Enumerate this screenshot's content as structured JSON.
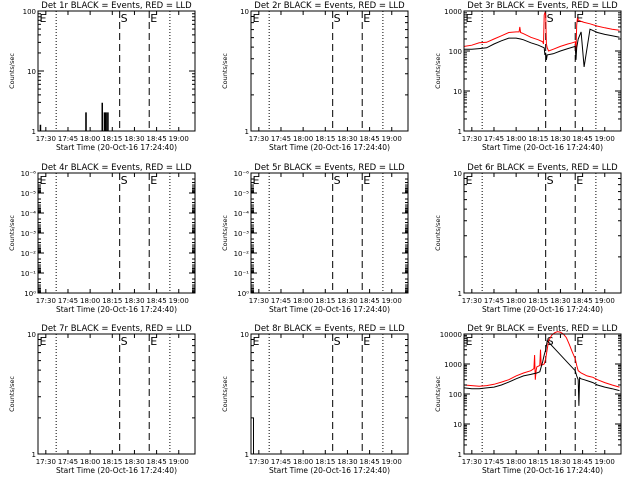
{
  "colors": {
    "events": "#000000",
    "lld": "#ff0000",
    "background": "#ffffff",
    "axes": "#000000"
  },
  "common": {
    "xlabel": "Start Time (20-Oct-16 17:24:40)",
    "ylabel": "Counts/sec",
    "xticks": [
      "17:30",
      "17:45",
      "18:00",
      "18:15",
      "18:30",
      "18:45",
      "19:00"
    ],
    "xtick_minutes": [
      30,
      45,
      60,
      75,
      90,
      105,
      120
    ],
    "xrange_minutes": [
      24.7,
      131
    ],
    "markers": [
      {
        "label": "E",
        "minute": 25,
        "style": "solid"
      },
      {
        "label": "S",
        "minute": 80,
        "style": "dashed"
      },
      {
        "label": "E",
        "minute": 100,
        "style": "dashed"
      }
    ],
    "dotted_minutes": [
      37,
      114
    ]
  },
  "chart_data": [
    {
      "id": "1r",
      "type": "line",
      "title": "Det 1r BLACK = Events, RED = LLD",
      "yscale": "log",
      "ylim": [
        1,
        100
      ],
      "yticks": [
        "1",
        "10",
        "100"
      ],
      "ytick_values": [
        1,
        10,
        100
      ],
      "series": [
        {
          "color": "#000000",
          "x": [
            26.2,
            26.2,
            26.5,
            26.5,
            57,
            57,
            57.4,
            57.4,
            68,
            68,
            68.4,
            68.4,
            69.5,
            69.5,
            69.9,
            69.9,
            70.6,
            70.6,
            71.0,
            71.0,
            71.8,
            71.8,
            72.2,
            72.2
          ],
          "y": [
            1,
            1.25,
            1.25,
            1,
            1,
            2,
            2,
            1,
            1,
            2.9,
            2.9,
            1,
            1,
            2,
            2,
            1,
            1,
            2,
            2,
            1,
            1,
            2,
            2,
            1
          ]
        }
      ]
    },
    {
      "id": "2r",
      "type": "line",
      "title": "Det 2r BLACK = Events, RED = LLD",
      "yscale": "log",
      "ylim": [
        1,
        10
      ],
      "yticks": [
        "1",
        "10"
      ],
      "ytick_values": [
        1,
        10
      ],
      "series": []
    },
    {
      "id": "3r",
      "type": "line",
      "title": "Det 3r BLACK = Events, RED = LLD",
      "yscale": "log",
      "ylim": [
        1,
        1000
      ],
      "yticks": [
        "1",
        "10",
        "100",
        "1000"
      ],
      "ytick_values": [
        1,
        10,
        100,
        1000
      ],
      "series": [
        {
          "color": "#ff0000",
          "x": [
            25,
            30,
            35,
            40,
            45,
            50,
            55,
            60,
            62,
            62.5,
            63,
            65,
            70,
            75,
            78,
            78.5,
            79,
            79.5,
            80,
            80.5,
            81,
            82,
            85,
            90,
            95,
            98,
            100,
            100.5,
            101,
            101.5,
            102,
            104,
            106,
            110,
            115,
            120,
            125,
            130
          ],
          "y": [
            130,
            140,
            160,
            165,
            200,
            240,
            290,
            300,
            300,
            400,
            290,
            270,
            220,
            190,
            170,
            150,
            800,
            900,
            800,
            150,
            120,
            100,
            110,
            130,
            150,
            160,
            170,
            100,
            450,
            650,
            600,
            550,
            520,
            480,
            420,
            380,
            350,
            330
          ]
        },
        {
          "color": "#000000",
          "x": [
            25,
            30,
            35,
            40,
            45,
            50,
            55,
            60,
            63,
            65,
            70,
            75,
            79,
            79.5,
            80,
            80.5,
            81,
            85,
            90,
            95,
            100,
            100.5,
            101,
            102,
            104,
            106,
            110,
            115,
            120,
            125,
            130
          ],
          "y": [
            110,
            110,
            115,
            120,
            150,
            180,
            210,
            210,
            200,
            190,
            160,
            140,
            120,
            80,
            90,
            60,
            80,
            85,
            100,
            115,
            130,
            60,
            120,
            200,
            300,
            40,
            350,
            290,
            260,
            240,
            220
          ]
        }
      ]
    },
    {
      "id": "4r",
      "type": "line",
      "title": "Det 4r BLACK = Events, RED = LLD",
      "yscale": "log",
      "ylim": [
        1e-06,
        1.0
      ],
      "yticks": [
        "10⁻⁶",
        "10⁻⁵",
        "10⁻⁴",
        "10⁻³",
        "10⁻²",
        "10⁻¹",
        "10⁰"
      ],
      "ytick_values": [
        1e-06,
        1e-05,
        0.0001,
        0.001,
        0.01,
        0.1,
        1
      ],
      "invert_y": true,
      "series": []
    },
    {
      "id": "5r",
      "type": "line",
      "title": "Det 5r BLACK = Events, RED = LLD",
      "yscale": "log",
      "ylim": [
        1e-06,
        1.0
      ],
      "yticks": [
        "10⁻⁶",
        "10⁻⁵",
        "10⁻⁴",
        "10⁻³",
        "10⁻²",
        "10⁻¹",
        "10⁰"
      ],
      "ytick_values": [
        1e-06,
        1e-05,
        0.0001,
        0.001,
        0.01,
        0.1,
        1
      ],
      "invert_y": true,
      "series": []
    },
    {
      "id": "6r",
      "type": "line",
      "title": "Det 6r BLACK = Events, RED = LLD",
      "yscale": "log",
      "ylim": [
        1,
        10
      ],
      "yticks": [
        "1",
        "10"
      ],
      "ytick_values": [
        1,
        10
      ],
      "series": []
    },
    {
      "id": "7r",
      "type": "line",
      "title": "Det 7r BLACK = Events, RED = LLD",
      "yscale": "log",
      "ylim": [
        1,
        10
      ],
      "yticks": [
        "1",
        "10"
      ],
      "ytick_values": [
        1,
        10
      ],
      "series": []
    },
    {
      "id": "8r",
      "type": "line",
      "title": "Det 8r BLACK = Events, RED = LLD",
      "yscale": "log",
      "ylim": [
        1,
        10
      ],
      "yticks": [
        "1",
        "10"
      ],
      "ytick_values": [
        1,
        10
      ],
      "series": [
        {
          "color": "#000000",
          "x": [
            26.4,
            26.4
          ],
          "y": [
            1,
            2
          ]
        }
      ]
    },
    {
      "id": "9r",
      "type": "line",
      "title": "Det 9r BLACK = Events, RED = LLD",
      "yscale": "log",
      "ylim": [
        1,
        10000
      ],
      "yticks": [
        "1",
        "10",
        "100",
        "1000",
        "10000"
      ],
      "ytick_values": [
        1,
        10,
        100,
        1000,
        10000
      ],
      "series": [
        {
          "color": "#ff0000",
          "x": [
            25,
            30,
            35,
            40,
            45,
            50,
            55,
            60,
            65,
            70,
            72,
            72.5,
            73,
            73.5,
            74,
            76,
            76.5,
            77,
            79,
            80,
            82,
            84,
            86,
            88,
            90,
            92,
            94,
            96,
            98,
            100,
            101,
            102,
            104,
            106,
            108,
            110,
            112,
            115,
            120,
            125,
            130
          ],
          "y": [
            200,
            190,
            180,
            190,
            210,
            250,
            300,
            400,
            500,
            600,
            700,
            2000,
            300,
            600,
            800,
            900,
            3000,
            900,
            1000,
            1500,
            6000,
            9000,
            11000,
            12000,
            11500,
            10000,
            7500,
            4500,
            2500,
            1500,
            900,
            600,
            500,
            450,
            400,
            380,
            360,
            300,
            240,
            200,
            170
          ]
        },
        {
          "color": "#000000",
          "x": [
            25,
            30,
            35,
            40,
            45,
            50,
            55,
            60,
            65,
            70,
            72,
            74,
            76,
            77,
            78,
            79,
            80,
            80.5,
            81,
            100,
            101,
            102,
            102.5,
            103,
            104,
            106,
            108,
            110,
            112,
            115,
            120,
            125,
            130
          ],
          "y": [
            160,
            150,
            150,
            160,
            170,
            200,
            250,
            320,
            400,
            450,
            480,
            500,
            550,
            800,
            1200,
            2000,
            3000,
            4000,
            6000,
            600,
            400,
            300,
            40,
            350,
            320,
            300,
            280,
            260,
            240,
            200,
            170,
            150,
            130
          ]
        }
      ]
    }
  ]
}
